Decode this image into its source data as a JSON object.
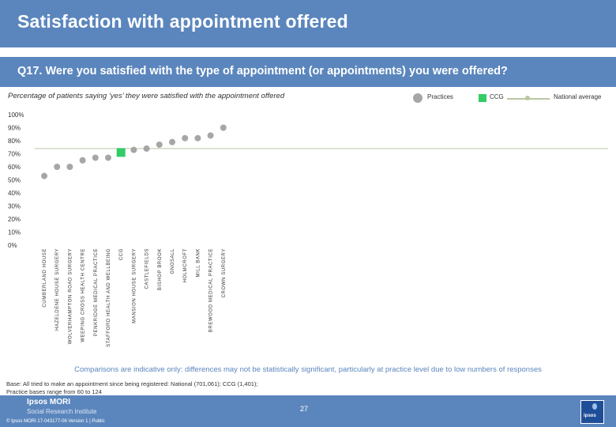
{
  "header": {
    "title": "Satisfaction with appointment offered"
  },
  "question": {
    "text": "Q17. Were you satisfied with the type of appointment (or appointments) you were offered?"
  },
  "subtitle": "Percentage of patients saying ‘yes’ they were satisfied with the appointment offered",
  "legend": {
    "practices": "Practices",
    "ccg": "CCG",
    "national": "National average"
  },
  "colors": {
    "header_bg": "#5b86bd",
    "practice": "#a6a6a6",
    "ccg": "#33cc66",
    "national": "#b9c7a3"
  },
  "chart_data": {
    "type": "scatter",
    "title": "Percentage of patients saying ‘yes’ they were satisfied with the appointment offered",
    "ylim": [
      0,
      100
    ],
    "y_ticks": [
      "100%",
      "90%",
      "80%",
      "70%",
      "60%",
      "50%",
      "40%",
      "30%",
      "20%",
      "10%",
      "0%"
    ],
    "categories": [
      "CUMBERLAND HOUSE",
      "HAZELDENE HOUSE SURGERY",
      "WOLVERHAMPTON ROAD SURGERY",
      "WEEPING CROSS HEALTH CENTRE",
      "PENKRIDGE MEDICAL PRACTICE",
      "STAFFORD HEALTH AND WELLBEING",
      "CCG",
      "MANSION HOUSE SURGERY",
      "CASTLEFIELDS",
      "BISHOP BROOK",
      "GNOSALL",
      "HOLMCROFT",
      "MILL BANK",
      "BREWOOD MEDICAL PRACTICE",
      "CROWN SURGERY"
    ],
    "values": [
      53,
      60,
      60,
      65,
      67,
      67,
      71,
      73,
      74,
      77,
      79,
      82,
      82,
      84,
      90
    ],
    "kind": [
      "practice",
      "practice",
      "practice",
      "practice",
      "practice",
      "practice",
      "ccg",
      "practice",
      "practice",
      "practice",
      "practice",
      "practice",
      "practice",
      "practice",
      "practice"
    ],
    "national_average": 74
  },
  "note": "Comparisons are indicative only: differences may not be statistically significant, particularly at practice level due to low numbers of responses",
  "base_line1": "Base: All tried to make an appointment since being registered: National (701,061); CCG (1,401);",
  "base_line2": "Practice bases range from 60 to 124",
  "footer": {
    "logo_line1": "Ipsos MORI",
    "logo_line2": "Social Research Institute",
    "page_number": "27",
    "copyright": "© Ipsos MORI    17-043177-06 Version 1 | Public",
    "corner_logo": "ipsos"
  }
}
